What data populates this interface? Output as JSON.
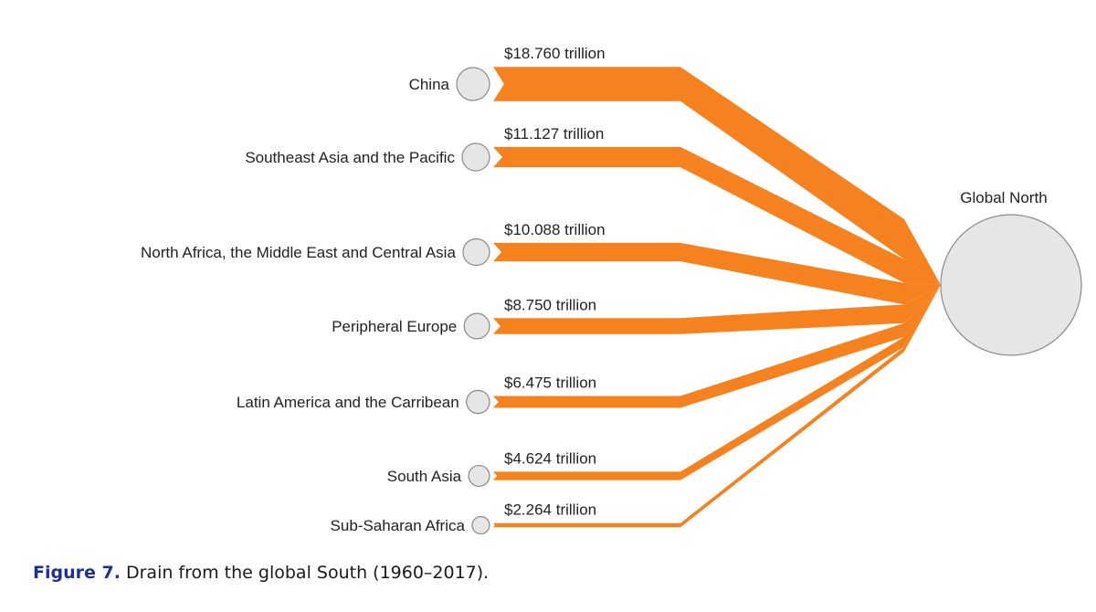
{
  "chart_data": {
    "type": "sankey",
    "target": {
      "name": "Global North"
    },
    "flows": [
      {
        "source": "China",
        "value": 18.76,
        "label": "$18.760 trillion"
      },
      {
        "source": "Southeast Asia and the Pacific",
        "value": 11.127,
        "label": "$11.127 trillion"
      },
      {
        "source": "North Africa, the Middle East and Central Asia",
        "value": 10.088,
        "label": "$10.088 trillion"
      },
      {
        "source": "Peripheral Europe",
        "value": 8.75,
        "label": "$8.750 trillion"
      },
      {
        "source": "Latin America and the Carribean",
        "value": 6.475,
        "label": "$6.475 trillion"
      },
      {
        "source": "South Asia",
        "value": 4.624,
        "label": "$4.624 trillion"
      },
      {
        "source": "Sub-Saharan Africa",
        "value": 2.264,
        "label": "$2.264 trillion"
      }
    ],
    "colors": {
      "flow": "#f5821f",
      "node_fill": "#e6e6e6",
      "node_stroke": "#8a8a8a"
    }
  },
  "caption": {
    "figure_number": "Figure 7.",
    "text": "Drain from the global South (1960–2017)."
  }
}
